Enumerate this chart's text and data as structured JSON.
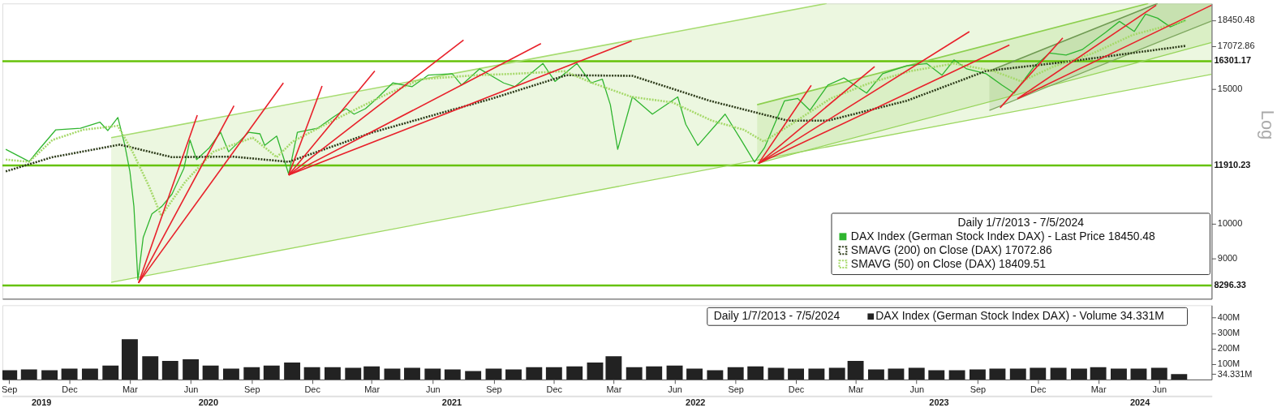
{
  "chart_data": [
    {
      "type": "line",
      "log": true,
      "xlim": [
        "2019-08-28",
        "2024-08-13"
      ],
      "ylim": [
        7970,
        19400
      ],
      "yticks": [
        9000,
        10000,
        15000,
        {
          "value": 17072.86,
          "label": "17072.86"
        },
        {
          "value": 18450.48,
          "label": "18450.48"
        }
      ],
      "ylabel": "Log",
      "tick_labels": "y",
      "legend": "bottom right",
      "legend_title": "Daily 1/7/2013 - 7/5/2024",
      "ref_lines": [
        {
          "axis": "y",
          "value": 16301.17,
          "label": "16301.17",
          "color": "#66c20a"
        },
        {
          "axis": "y",
          "value": 11910.23,
          "label": "11910.23",
          "color": "#66c20a"
        },
        {
          "axis": "y",
          "value": 8296.33,
          "label": "8296.33",
          "color": "#66c20a"
        }
      ],
      "series": [
        {
          "type": "line",
          "color": "#9ed863",
          "x": [
            "2020-02-07",
            "2023-01-14",
            "2024-08-13"
          ],
          "values": [
            8375,
            12590,
            15670
          ],
          "lower": [
            8375,
            12590,
            15670
          ],
          "upper": [
            12950,
            19400,
            19400
          ]
        },
        {
          "type": "line",
          "color": "#96d45a",
          "x": [
            "2022-10-02",
            "2024-05-10",
            "2024-08-13"
          ],
          "values": [
            11980,
            16380,
            17250
          ],
          "lower": [
            11980,
            16380,
            17250
          ],
          "upper": [
            14300,
            19400,
            19400
          ]
        },
        {
          "type": "line",
          "color": "#7fa860",
          "x": [
            "2023-09-15",
            "2024-05-24",
            "2024-08-13"
          ],
          "values": [
            14060,
            17250,
            18400
          ],
          "lower": [
            14060,
            17250,
            18400
          ],
          "upper": [
            15830,
            19400,
            19400
          ]
        },
        {
          "type": "line",
          "color": "#a6dc70",
          "x": [
            "2020-02-07",
            "2023-01-14"
          ],
          "values": [
            12950,
            19400
          ]
        },
        {
          "type": "line",
          "color": "#8ccf4e",
          "x": [
            "2022-10-02",
            "2024-05-10"
          ],
          "values": [
            14300,
            19400
          ]
        },
        {
          "type": "line",
          "color": "#6f9a52",
          "x": [
            "2023-09-15",
            "2024-05-24"
          ],
          "values": [
            15830,
            19400
          ]
        },
        {
          "type": "line",
          "name": "DAX Index (German Stock Index DAX) - Last Price 18450.48",
          "color": "#2fb52f",
          "x": [
            "2019-09-02",
            "2019-10-07",
            "2019-10-24",
            "2019-11-16",
            "2019-12-23",
            "2020-01-21",
            "2020-02-02",
            "2020-02-17",
            "2020-02-27",
            "2020-03-06",
            "2020-03-12",
            "2020-03-18",
            "2020-03-26",
            "2020-04-08",
            "2020-04-23",
            "2020-05-08",
            "2020-05-26",
            "2020-06-04",
            "2020-06-14",
            "2020-07-03",
            "2020-07-20",
            "2020-08-01",
            "2020-08-31",
            "2020-09-17",
            "2020-09-24",
            "2020-10-12",
            "2020-10-30",
            "2020-11-12",
            "2020-12-12",
            "2021-01-06",
            "2021-01-24",
            "2021-02-05",
            "2021-02-22",
            "2021-03-11",
            "2021-04-04",
            "2021-05-03",
            "2021-05-27",
            "2021-07-02",
            "2021-07-16",
            "2021-08-12",
            "2021-09-17",
            "2021-10-04",
            "2021-11-15",
            "2021-12-03",
            "2022-01-05",
            "2022-01-26",
            "2022-02-12",
            "2022-02-24",
            "2022-03-07",
            "2022-03-29",
            "2022-04-28",
            "2022-06-05",
            "2022-06-17",
            "2022-07-05",
            "2022-08-15",
            "2022-09-08",
            "2022-09-28",
            "2022-10-13",
            "2022-11-12",
            "2022-12-02",
            "2022-12-20",
            "2023-01-16",
            "2023-02-09",
            "2023-03-15",
            "2023-04-08",
            "2023-05-14",
            "2023-06-13",
            "2023-07-06",
            "2023-07-24",
            "2023-08-12",
            "2023-09-10",
            "2023-10-04",
            "2023-10-22",
            "2023-11-21",
            "2023-12-14",
            "2024-01-08",
            "2024-02-01",
            "2024-03-07",
            "2024-03-28",
            "2024-04-19",
            "2024-05-06",
            "2024-05-24",
            "2024-06-12",
            "2024-07-05"
          ],
          "values": [
            12500,
            12050,
            12560,
            13260,
            13320,
            13570,
            13230,
            13760,
            12710,
            11700,
            10530,
            8440,
            9590,
            10290,
            10530,
            10920,
            11810,
            12860,
            12120,
            12560,
            13160,
            12410,
            13160,
            13100,
            12650,
            13010,
            11600,
            13160,
            13320,
            13800,
            14130,
            13900,
            14130,
            14570,
            15270,
            15100,
            15630,
            15700,
            15170,
            15930,
            15270,
            15100,
            16190,
            15340,
            16190,
            15270,
            15440,
            14300,
            12500,
            14640,
            13900,
            14640,
            13480,
            12650,
            13900,
            12860,
            12030,
            12560,
            14470,
            14570,
            14060,
            15170,
            15500,
            14810,
            15700,
            16080,
            16190,
            15630,
            16370,
            15930,
            15700,
            15170,
            14810,
            16040,
            16710,
            16610,
            16880,
            17780,
            18380,
            17830,
            18790,
            18560,
            18080,
            18450.48
          ]
        },
        {
          "type": "line",
          "name": "SMAVG (200)  on Close (DAX) 17072.86",
          "color": "#2d3b1a",
          "line_style": "dotted",
          "x": [
            "2019-09-02",
            "2019-11-11",
            "2020-02-20",
            "2020-05-08",
            "2020-08-07",
            "2020-10-30",
            "2021-03-05",
            "2021-08-31",
            "2021-12-20",
            "2022-03-29",
            "2022-07-23",
            "2022-11-17",
            "2023-01-16",
            "2023-05-14",
            "2023-09-10",
            "2024-01-08",
            "2024-07-05"
          ],
          "values": [
            11700,
            12210,
            12680,
            12210,
            12230,
            12040,
            13160,
            14570,
            15630,
            15600,
            14470,
            13630,
            13630,
            14470,
            15830,
            16270,
            17072.86
          ]
        },
        {
          "type": "line",
          "name": "SMAVG (50)  on Close (DAX) 18409.51",
          "color": "#a6d96a",
          "line_style": "dotted",
          "x": [
            "2019-09-02",
            "2019-10-07",
            "2019-11-11",
            "2019-12-27",
            "2020-02-17",
            "2020-03-10",
            "2020-04-04",
            "2020-04-22",
            "2020-05-28",
            "2020-07-09",
            "2020-09-06",
            "2020-10-12",
            "2020-11-05",
            "2021-01-04",
            "2021-03-17",
            "2021-05-16",
            "2021-08-08",
            "2021-10-06",
            "2021-12-17",
            "2022-01-28",
            "2022-03-28",
            "2022-05-28",
            "2022-07-26",
            "2022-09-12",
            "2022-10-12",
            "2022-11-22",
            "2023-01-20",
            "2023-03-20",
            "2023-05-19",
            "2023-07-24",
            "2023-09-22",
            "2023-11-02",
            "2023-12-20",
            "2024-02-18",
            "2024-04-17",
            "2024-07-05"
          ],
          "values": [
            12120,
            12040,
            12860,
            13260,
            13420,
            12410,
            11170,
            10230,
            11340,
            12410,
            12950,
            12210,
            12800,
            13630,
            14640,
            15440,
            15630,
            15700,
            15820,
            15270,
            14640,
            14400,
            13630,
            13260,
            12800,
            13480,
            14570,
            15270,
            15820,
            16190,
            15820,
            15340,
            16040,
            16710,
            17650,
            18409.51
          ]
        },
        {
          "type": "line",
          "color": "#e8202a",
          "x": [
            "2020-03-19",
            "2020-06-15"
          ],
          "values": [
            8360,
            13860
          ]
        },
        {
          "type": "line",
          "color": "#e8202a",
          "x": [
            "2020-03-19",
            "2020-08-09"
          ],
          "values": [
            8360,
            14260
          ]
        },
        {
          "type": "line",
          "color": "#e8202a",
          "x": [
            "2020-03-19",
            "2020-10-22"
          ],
          "values": [
            8360,
            15270
          ]
        },
        {
          "type": "line",
          "color": "#e8202a",
          "x": [
            "2020-10-30",
            "2020-12-19"
          ],
          "values": [
            11570,
            15130
          ]
        },
        {
          "type": "line",
          "color": "#e8202a",
          "x": [
            "2020-10-30",
            "2021-03-08"
          ],
          "values": [
            11570,
            15830
          ]
        },
        {
          "type": "line",
          "color": "#e8202a",
          "x": [
            "2020-10-30",
            "2021-07-19"
          ],
          "values": [
            11570,
            17380
          ]
        },
        {
          "type": "line",
          "color": "#e8202a",
          "x": [
            "2020-10-30",
            "2021-11-12"
          ],
          "values": [
            11570,
            17190
          ]
        },
        {
          "type": "line",
          "color": "#e8202a",
          "x": [
            "2020-10-30",
            "2022-03-28"
          ],
          "values": [
            11570,
            17330
          ]
        },
        {
          "type": "line",
          "color": "#e8202a",
          "x": [
            "2022-10-04",
            "2022-12-22"
          ],
          "values": [
            11980,
            15160
          ]
        },
        {
          "type": "line",
          "color": "#e8202a",
          "x": [
            "2022-10-04",
            "2023-03-27"
          ],
          "values": [
            11980,
            16040
          ]
        },
        {
          "type": "line",
          "color": "#e8202a",
          "x": [
            "2022-10-04",
            "2023-08-16"
          ],
          "values": [
            11980,
            17820
          ]
        },
        {
          "type": "line",
          "color": "#e8202a",
          "x": [
            "2022-10-04",
            "2023-10-15"
          ],
          "values": [
            11980,
            17120
          ]
        },
        {
          "type": "line",
          "color": "#e8202a",
          "x": [
            "2023-10-01",
            "2024-01-03"
          ],
          "values": [
            14170,
            17490
          ]
        },
        {
          "type": "line",
          "color": "#e8202a",
          "x": [
            "2023-10-27",
            "2024-05-22"
          ],
          "values": [
            14560,
            19300
          ]
        },
        {
          "type": "line",
          "color": "#e8202a",
          "x": [
            "2023-10-27",
            "2024-08-13"
          ],
          "values": [
            14560,
            19300
          ]
        }
      ]
    },
    {
      "type": "bar",
      "xlim": [
        "2019-08-28",
        "2024-08-13"
      ],
      "ylim": [
        0,
        480
      ],
      "yticks": [
        {
          "value": 34.331,
          "label": "34.331M"
        },
        {
          "value": 100,
          "label": "100M"
        },
        {
          "value": 200,
          "label": "200M"
        },
        {
          "value": 300,
          "label": "300M"
        },
        {
          "value": 400,
          "label": "400M"
        }
      ],
      "xticks": [
        {
          "value": "2019-09",
          "label": "Sep"
        },
        {
          "value": "2019-12",
          "label": "Dec"
        },
        {
          "value": "2020-03",
          "label": "Mar"
        },
        {
          "value": "2020-06",
          "label": "Jun"
        },
        {
          "value": "2020-09",
          "label": "Sep"
        },
        {
          "value": "2020-12",
          "label": "Dec"
        },
        {
          "value": "2021-03",
          "label": "Mar"
        },
        {
          "value": "2021-06",
          "label": "Jun"
        },
        {
          "value": "2021-09",
          "label": "Sep"
        },
        {
          "value": "2021-12",
          "label": "Dec"
        },
        {
          "value": "2022-03",
          "label": "Mar"
        },
        {
          "value": "2022-06",
          "label": "Jun"
        },
        {
          "value": "2022-09",
          "label": "Sep"
        },
        {
          "value": "2022-12",
          "label": "Dec"
        },
        {
          "value": "2023-03",
          "label": "Mar"
        },
        {
          "value": "2023-06",
          "label": "Jun"
        },
        {
          "value": "2023-09",
          "label": "Sep"
        },
        {
          "value": "2023-12",
          "label": "Dec"
        },
        {
          "value": "2024-03",
          "label": "Mar"
        },
        {
          "value": "2024-06",
          "label": "Jun"
        }
      ],
      "legend": "top right",
      "legend_title": "Daily 1/7/2013 - 7/5/2024",
      "x2lim": [
        "2019-08-28",
        "2024-08-13"
      ],
      "x2ticks": [
        {
          "value": "2019-10-25",
          "label": "2019"
        },
        {
          "value": "2020-07-01",
          "label": "2020"
        },
        {
          "value": "2021-07-01",
          "label": "2021"
        },
        {
          "value": "2022-07-01",
          "label": "2022"
        },
        {
          "value": "2023-07-01",
          "label": "2023"
        },
        {
          "value": "2024-04-27",
          "label": "2024"
        }
      ],
      "series": [
        {
          "name": "DAX Index (German Stock Index DAX) - Volume 34.331M",
          "color": "#222222",
          "x": [
            "2019-09",
            "2019-10",
            "2019-11",
            "2019-12",
            "2020-01",
            "2020-02",
            "2020-03",
            "2020-04",
            "2020-05",
            "2020-06",
            "2020-07",
            "2020-08",
            "2020-09",
            "2020-10",
            "2020-11",
            "2020-12",
            "2021-01",
            "2021-02",
            "2021-03",
            "2021-04",
            "2021-05",
            "2021-06",
            "2021-07",
            "2021-08",
            "2021-09",
            "2021-10",
            "2021-11",
            "2021-12",
            "2022-01",
            "2022-02",
            "2022-03",
            "2022-04",
            "2022-05",
            "2022-06",
            "2022-07",
            "2022-08",
            "2022-09",
            "2022-10",
            "2022-11",
            "2022-12",
            "2023-01",
            "2023-02",
            "2023-03",
            "2023-04",
            "2023-05",
            "2023-06",
            "2023-07",
            "2023-08",
            "2023-09",
            "2023-10",
            "2023-11",
            "2023-12",
            "2024-01",
            "2024-02",
            "2024-03",
            "2024-04",
            "2024-05",
            "2024-06",
            "2024-07"
          ],
          "values": [
            60,
            65,
            60,
            70,
            70,
            90,
            260,
            150,
            120,
            130,
            90,
            70,
            80,
            90,
            110,
            80,
            80,
            75,
            85,
            70,
            75,
            70,
            65,
            55,
            70,
            65,
            80,
            80,
            85,
            110,
            150,
            80,
            85,
            90,
            70,
            60,
            80,
            85,
            75,
            70,
            70,
            75,
            120,
            65,
            70,
            75,
            60,
            60,
            65,
            70,
            70,
            75,
            75,
            70,
            80,
            70,
            70,
            75,
            34.331
          ]
        }
      ]
    }
  ]
}
